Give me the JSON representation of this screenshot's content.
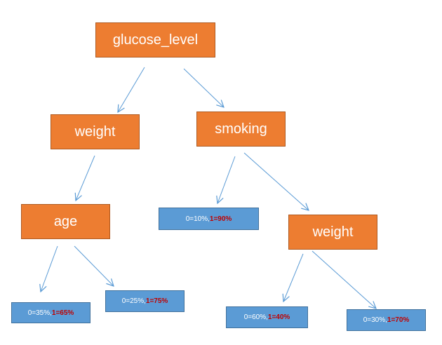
{
  "colors": {
    "decision_fill": "#ED7D31",
    "decision_border": "#AE5A21",
    "leaf_fill": "#5B9BD5",
    "leaf_border": "#41719C",
    "edge": "#5B9BD5",
    "class1_text": "#C00000"
  },
  "nodes": {
    "root": {
      "label": "glucose_level"
    },
    "weight_left": {
      "label": "weight"
    },
    "smoking": {
      "label": "smoking"
    },
    "age": {
      "label": "age"
    },
    "weight_right": {
      "label": "weight"
    }
  },
  "leaves": {
    "age_left": {
      "class0": "0=35%,",
      "class1": "1=65%"
    },
    "age_right": {
      "class0": "0=25%,",
      "class1": "1=75%"
    },
    "smoking_left": {
      "class0": "0=10%,",
      "class1": "1=90%"
    },
    "weight_right_left": {
      "class0": "0=60%,",
      "class1": "1=40%"
    },
    "weight_right_right": {
      "class0": "0=30%,",
      "class1": "1=70%"
    }
  }
}
